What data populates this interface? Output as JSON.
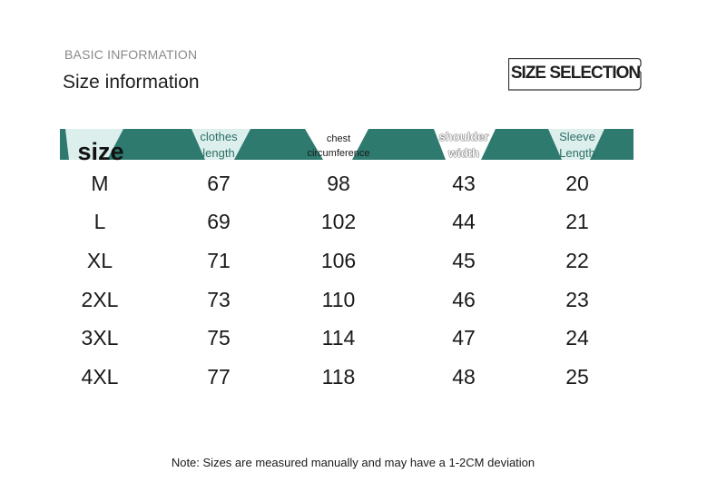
{
  "header": {
    "eyebrow": "BASIC INFORMATION",
    "title": "Size information",
    "badge": "SIZE SELECTION"
  },
  "table": {
    "columns": {
      "size": "size",
      "clothes_1": "clothes",
      "clothes_2": "length",
      "chest_1": "chest",
      "chest_2": "circumference",
      "shoulder_1": "shoulder",
      "shoulder_2": "width",
      "sleeve_1": "Sleeve",
      "sleeve_2": "Length"
    },
    "rows": [
      {
        "size": "M",
        "clothes_length": "67",
        "chest": "98",
        "shoulder": "43",
        "sleeve": "20"
      },
      {
        "size": "L",
        "clothes_length": "69",
        "chest": "102",
        "shoulder": "44",
        "sleeve": "21"
      },
      {
        "size": "XL",
        "clothes_length": "71",
        "chest": "106",
        "shoulder": "45",
        "sleeve": "22"
      },
      {
        "size": "2XL",
        "clothes_length": "73",
        "chest": "110",
        "shoulder": "46",
        "sleeve": "23"
      },
      {
        "size": "3XL",
        "clothes_length": "75",
        "chest": "114",
        "shoulder": "47",
        "sleeve": "24"
      },
      {
        "size": "4XL",
        "clothes_length": "77",
        "chest": "118",
        "shoulder": "48",
        "sleeve": "25"
      }
    ]
  },
  "note": "Note: Sizes are measured manually and may have a 1-2CM deviation",
  "colors": {
    "band": "#2e7a6e",
    "band_light": "#dcefed",
    "text": "#1a1a1a"
  }
}
